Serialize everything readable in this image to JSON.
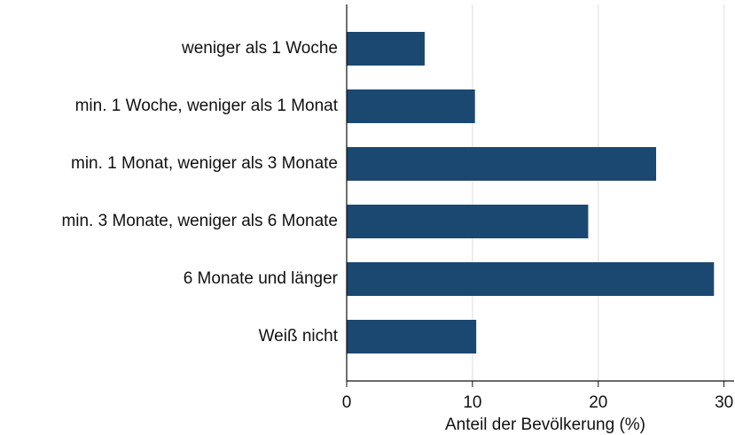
{
  "chart_data": {
    "type": "barh",
    "categories": [
      "weniger als 1 Woche",
      "min. 1 Woche, weniger als 1 Monat",
      "min. 1 Monat, weniger als 3 Monate",
      "min. 3 Monate, weniger als 6 Monate",
      "6 Monate und länger",
      "Weiß nicht"
    ],
    "values": [
      6.2,
      10.2,
      24.6,
      19.2,
      29.2,
      10.3
    ],
    "color": "#1b4871",
    "xlabel": "Anteil der Bevölkerung (%)",
    "xlim": [
      0,
      30.8
    ],
    "xticks": [
      0,
      10,
      20,
      30
    ],
    "grid": true
  }
}
